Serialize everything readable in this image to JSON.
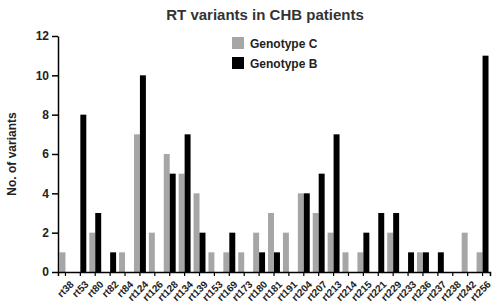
{
  "chart_data": {
    "type": "bar",
    "title": "RT variants in CHB patients",
    "y_label": "No. of variants",
    "categories": [
      "rt38",
      "rt53",
      "rt80",
      "rt82",
      "rt84",
      "rt124",
      "rt126",
      "rt128",
      "rt134",
      "rt139",
      "rt153",
      "rt169",
      "rt173",
      "rt180",
      "rt181",
      "rt191",
      "rt204",
      "rt207",
      "rt213",
      "rt214",
      "rt215",
      "rt221",
      "rt229",
      "rt233",
      "rt236",
      "rt237",
      "rt238",
      "rt242",
      "rt256"
    ],
    "series": [
      {
        "name": "Genotype C",
        "color": "#a6a6a6",
        "values": [
          1,
          0,
          2,
          0,
          1,
          7,
          2,
          6,
          5,
          4,
          1,
          1,
          1,
          2,
          3,
          2,
          4,
          3,
          2,
          1,
          1,
          0,
          2,
          0,
          1,
          0,
          0,
          2,
          1
        ]
      },
      {
        "name": "Genotype B",
        "color": "#000000",
        "values": [
          0,
          8,
          3,
          1,
          0,
          10,
          0,
          5,
          7,
          2,
          0,
          2,
          0,
          1,
          1,
          0,
          4,
          5,
          7,
          0,
          2,
          3,
          3,
          1,
          1,
          1,
          0,
          0,
          11
        ]
      }
    ],
    "ylim": [
      0,
      12
    ],
    "yticks": [
      0,
      2,
      4,
      6,
      8,
      10,
      12
    ],
    "grid": false,
    "legend": "top"
  }
}
